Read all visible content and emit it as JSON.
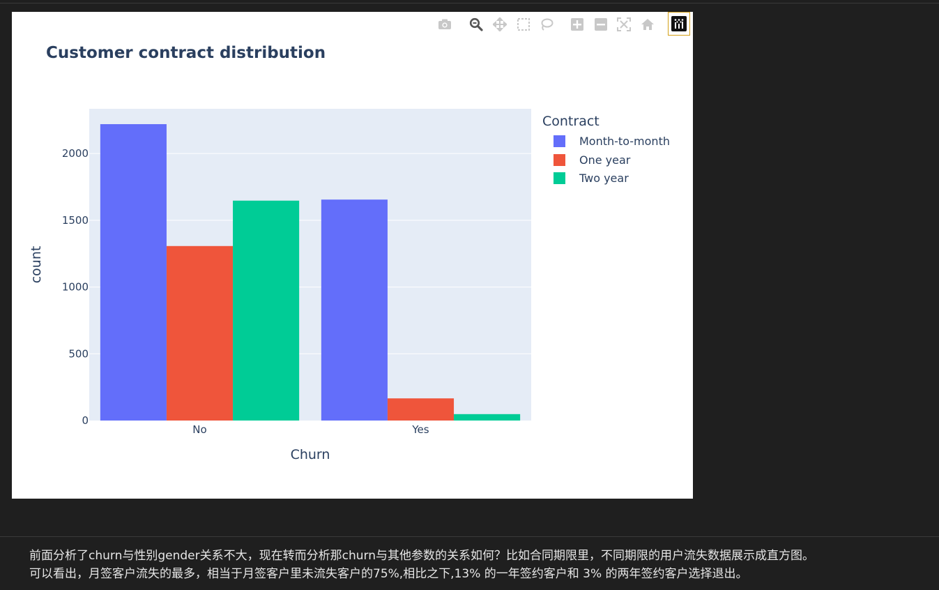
{
  "chart_title": "Customer contract distribution",
  "modebar": {
    "icons": [
      "camera-icon",
      "zoom-icon",
      "pan-icon",
      "box-select-icon",
      "lasso-select-icon",
      "zoom-in-icon",
      "zoom-out-icon",
      "autoscale-icon",
      "home-icon",
      "plotly-logo-icon"
    ]
  },
  "legend": {
    "title": "Contract",
    "items": [
      {
        "label": "Month-to-month",
        "color": "#636efa"
      },
      {
        "label": "One year",
        "color": "#ef553b"
      },
      {
        "label": "Two year",
        "color": "#00cc96"
      }
    ]
  },
  "chart_data": {
    "type": "bar",
    "barmode": "group",
    "title": "Customer contract distribution",
    "xlabel": "Churn",
    "ylabel": "count",
    "categories": [
      "No",
      "Yes"
    ],
    "series": [
      {
        "name": "Month-to-month",
        "values": [
          2220,
          1655
        ],
        "color": "#636efa"
      },
      {
        "name": "One year",
        "values": [
          1307,
          166
        ],
        "color": "#ef553b"
      },
      {
        "name": "Two year",
        "values": [
          1647,
          48
        ],
        "color": "#00cc96"
      }
    ],
    "ylim": [
      0,
      2335
    ],
    "yticks": [
      0,
      500,
      1000,
      1500,
      2000
    ],
    "ytick_labels": [
      "0",
      "500",
      "1000",
      "1500",
      "2000"
    ],
    "legend_title": "Contract",
    "legend_position": "right",
    "grid": true,
    "plot_bg": "#e5ecf6"
  },
  "text": {
    "line1": "前面分析了churn与性别gender关系不大，现在转而分析那churn与其他参数的关系如何？比如合同期限里，不同期限的用户流失数据展示成直方图。",
    "line2": "可以看出，月签客户流失的最多，相当于月签客户里未流失客户的75%,相比之下,13% 的一年签约客户和 3% 的两年签约客户选择退出。"
  }
}
